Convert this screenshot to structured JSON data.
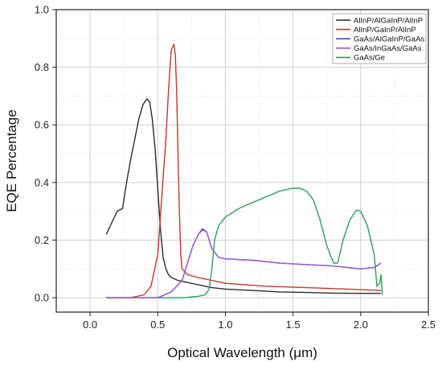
{
  "chart_data": {
    "type": "line",
    "title": "",
    "xlabel": "Optical Wavelength (μm)",
    "ylabel": "EQE Percentage",
    "xlim": [
      -0.25,
      2.5
    ],
    "ylim": [
      -0.05,
      1.0
    ],
    "xticks": [
      "0.0",
      "0.5",
      "1.0",
      "1.5",
      "2.0",
      "2.5"
    ],
    "yticks": [
      "0.0",
      "0.2",
      "0.4",
      "0.6",
      "0.8",
      "1.0"
    ],
    "grid": true,
    "legend_position": "top-right",
    "series": [
      {
        "name": "AlInP/AlGaInP/AlInP",
        "color": "#2b2b2b",
        "x": [
          0.12,
          0.16,
          0.2,
          0.24,
          0.27,
          0.3,
          0.33,
          0.36,
          0.39,
          0.42,
          0.44,
          0.46,
          0.48,
          0.5,
          0.52,
          0.54,
          0.56,
          0.58,
          0.6,
          0.65,
          0.7,
          0.8,
          0.9,
          1.0,
          1.2,
          1.4,
          1.6,
          1.8,
          2.0,
          2.15
        ],
        "y": [
          0.22,
          0.26,
          0.3,
          0.31,
          0.4,
          0.48,
          0.55,
          0.62,
          0.67,
          0.69,
          0.68,
          0.62,
          0.52,
          0.38,
          0.24,
          0.14,
          0.1,
          0.08,
          0.07,
          0.06,
          0.055,
          0.045,
          0.035,
          0.03,
          0.025,
          0.02,
          0.018,
          0.016,
          0.015,
          0.015
        ]
      },
      {
        "name": "AlInP/GaInP/AlInP",
        "color": "#c0392b",
        "x": [
          0.12,
          0.3,
          0.4,
          0.45,
          0.5,
          0.53,
          0.56,
          0.58,
          0.6,
          0.62,
          0.63,
          0.64,
          0.65,
          0.66,
          0.67,
          0.68,
          0.72,
          0.8,
          1.0,
          1.3,
          1.6,
          1.9,
          2.15
        ],
        "y": [
          0.0,
          0.0,
          0.01,
          0.04,
          0.15,
          0.35,
          0.55,
          0.72,
          0.86,
          0.88,
          0.84,
          0.72,
          0.5,
          0.3,
          0.15,
          0.1,
          0.08,
          0.07,
          0.05,
          0.04,
          0.035,
          0.03,
          0.025
        ]
      },
      {
        "name": "GaAs/AlGaInP/GaAs",
        "color": "#3b4fc4",
        "x": [
          0.12,
          0.5,
          0.6,
          0.68,
          0.72,
          0.76,
          0.8,
          0.83,
          0.86,
          0.9,
          0.95,
          1.0,
          1.2,
          1.4,
          1.6,
          1.8,
          2.0,
          2.1,
          2.15
        ],
        "y": [
          0.0,
          0.0,
          0.02,
          0.06,
          0.12,
          0.18,
          0.22,
          0.235,
          0.23,
          0.17,
          0.14,
          0.135,
          0.13,
          0.12,
          0.115,
          0.11,
          0.1,
          0.105,
          0.12
        ]
      },
      {
        "name": "GaAs/InGaAs/GaAs",
        "color": "#9b59d6",
        "x": [
          0.12,
          0.5,
          0.6,
          0.68,
          0.72,
          0.76,
          0.8,
          0.83,
          0.86,
          0.9,
          0.95,
          1.0,
          1.2,
          1.4,
          1.6,
          1.8,
          2.0,
          2.1,
          2.15
        ],
        "y": [
          0.0,
          0.0,
          0.02,
          0.06,
          0.12,
          0.18,
          0.22,
          0.24,
          0.23,
          0.17,
          0.14,
          0.135,
          0.13,
          0.12,
          0.115,
          0.11,
          0.1,
          0.105,
          0.12
        ]
      },
      {
        "name": "GaAs/Ge",
        "color": "#2e9e5b",
        "x": [
          0.5,
          0.7,
          0.8,
          0.85,
          0.88,
          0.9,
          0.92,
          0.95,
          1.0,
          1.1,
          1.2,
          1.3,
          1.4,
          1.5,
          1.55,
          1.6,
          1.65,
          1.7,
          1.75,
          1.8,
          1.83,
          1.87,
          1.92,
          1.97,
          2.0,
          2.05,
          2.1,
          2.12,
          2.14,
          2.15,
          2.16
        ],
        "y": [
          0.0,
          0.0,
          0.005,
          0.01,
          0.03,
          0.1,
          0.2,
          0.25,
          0.28,
          0.31,
          0.33,
          0.35,
          0.37,
          0.38,
          0.38,
          0.37,
          0.34,
          0.27,
          0.18,
          0.12,
          0.12,
          0.2,
          0.27,
          0.305,
          0.3,
          0.25,
          0.15,
          0.04,
          0.05,
          0.08,
          0.01
        ]
      }
    ]
  }
}
